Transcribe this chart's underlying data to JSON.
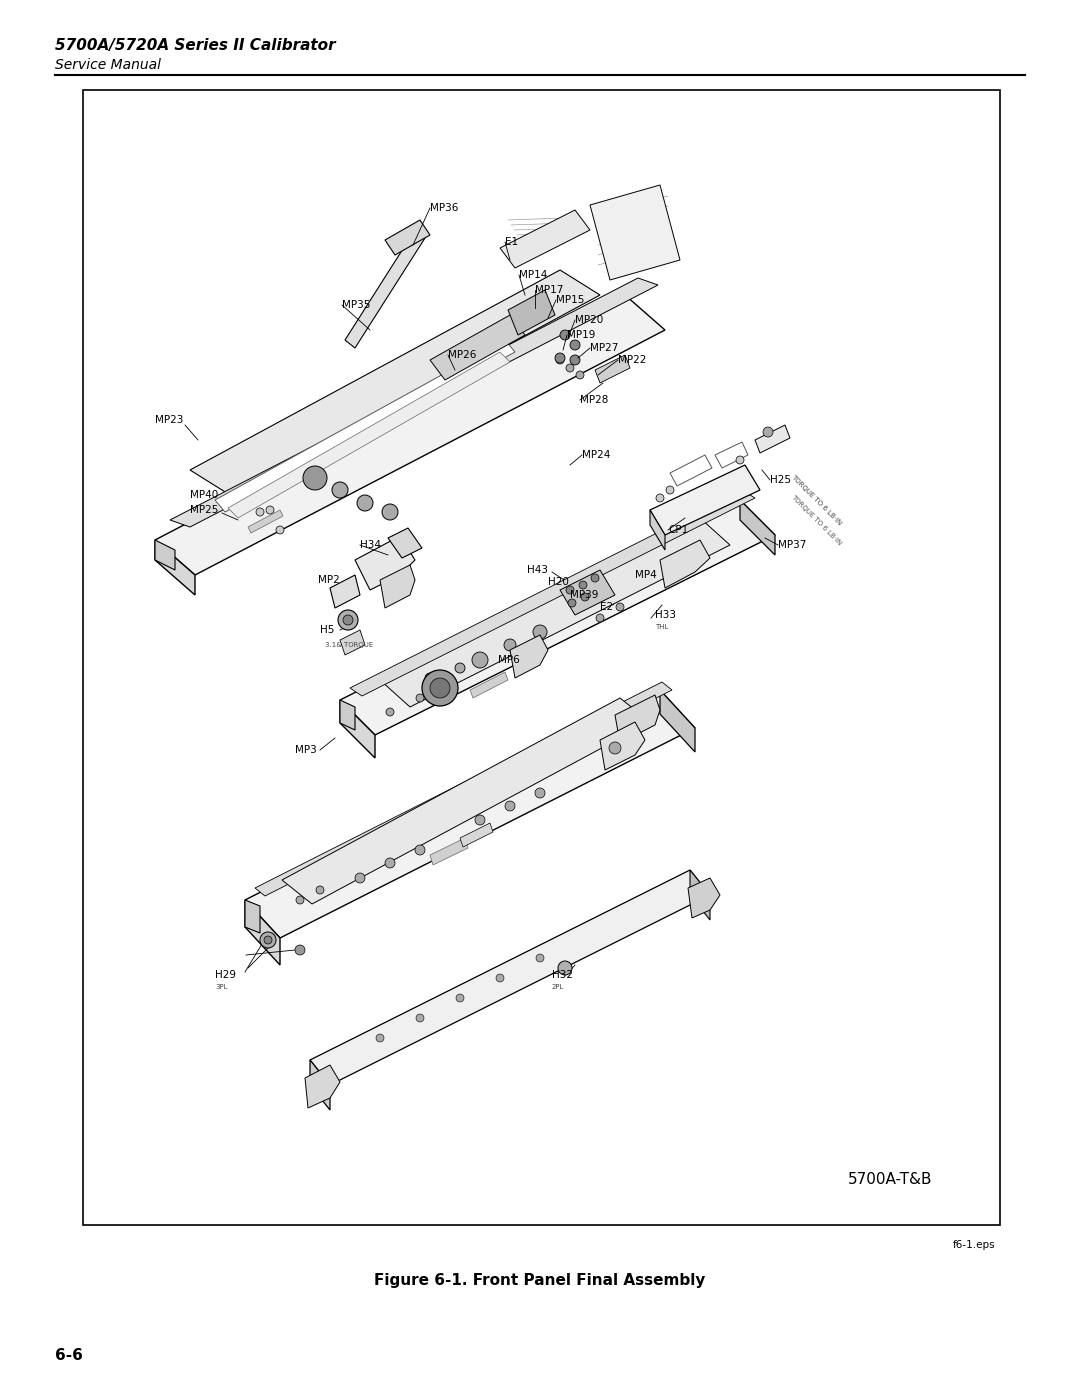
{
  "title_bold": "5700A/5720A Series II Calibrator",
  "title_italic": "Service Manual",
  "figure_caption": "Figure 6-1. Front Panel Final Assembly",
  "page_number": "6-6",
  "filename_ref": "f6-1.eps",
  "watermark": "5700A-T&B",
  "background_color": "#ffffff",
  "box_border_color": "#000000",
  "text_color": "#000000"
}
